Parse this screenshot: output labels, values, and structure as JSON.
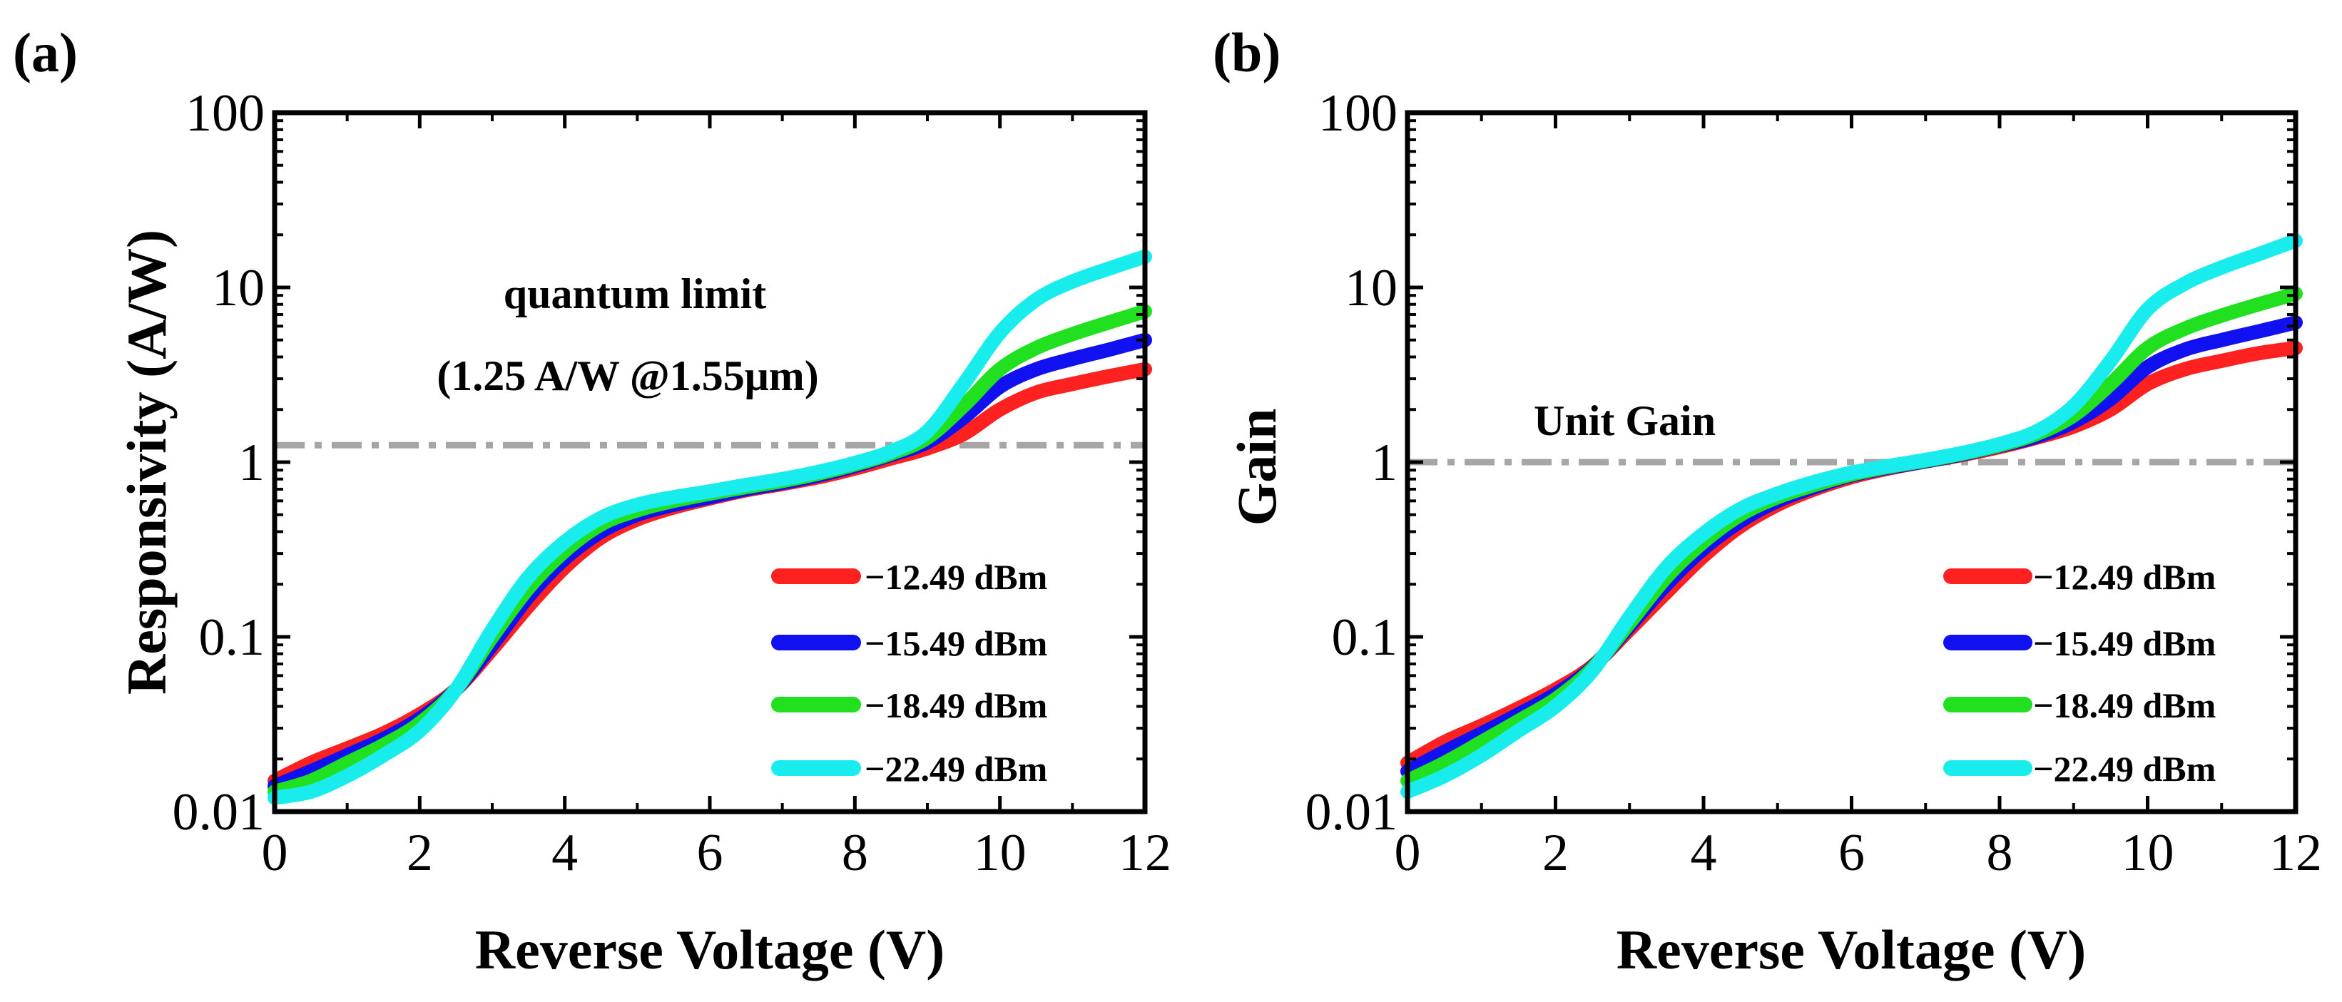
{
  "chart_data": [
    {
      "panel_label": "(a)",
      "type": "line",
      "xlabel": "Reverse Voltage (V)",
      "ylabel": "Responsivity (A/W)",
      "xlim": [
        0,
        12
      ],
      "ylim": [
        0.01,
        100
      ],
      "yscale": "log",
      "xticks": [
        "0",
        "2",
        "4",
        "6",
        "8",
        "10",
        "12"
      ],
      "yticks": [
        "0.01",
        "0.1",
        "1",
        "10",
        "100"
      ],
      "annotation_lines": [
        "quantum limit",
        "(1.25 A/W @1.55μm)"
      ],
      "reference_line": {
        "y": 1.25,
        "style": "dash-dot",
        "color": "#a6a6a6"
      },
      "legend_position": "bottom-right",
      "x": [
        0,
        0.5,
        1,
        1.5,
        2,
        2.5,
        3,
        3.5,
        4,
        4.5,
        5,
        5.5,
        6,
        6.5,
        7,
        7.5,
        8,
        8.5,
        9,
        9.5,
        10,
        10.5,
        11,
        11.5,
        12
      ],
      "series": [
        {
          "name": "−12.49 dBm",
          "color": "#ff2020",
          "values": [
            0.015,
            0.019,
            0.023,
            0.028,
            0.036,
            0.05,
            0.085,
            0.15,
            0.25,
            0.37,
            0.47,
            0.55,
            0.62,
            0.69,
            0.75,
            0.82,
            0.92,
            1.05,
            1.2,
            1.45,
            2.0,
            2.5,
            2.8,
            3.1,
            3.4
          ]
        },
        {
          "name": "−15.49 dBm",
          "color": "#1010f0",
          "values": [
            0.014,
            0.017,
            0.021,
            0.026,
            0.034,
            0.05,
            0.09,
            0.17,
            0.28,
            0.4,
            0.5,
            0.57,
            0.63,
            0.7,
            0.76,
            0.84,
            0.95,
            1.1,
            1.3,
            1.8,
            2.7,
            3.4,
            3.9,
            4.4,
            5.0
          ]
        },
        {
          "name": "−18.49 dBm",
          "color": "#20e020",
          "values": [
            0.013,
            0.015,
            0.019,
            0.024,
            0.032,
            0.05,
            0.1,
            0.19,
            0.31,
            0.44,
            0.53,
            0.6,
            0.66,
            0.72,
            0.78,
            0.86,
            0.97,
            1.12,
            1.38,
            2.1,
            3.4,
            4.5,
            5.4,
            6.3,
            7.3
          ]
        },
        {
          "name": "−22.49 dBm",
          "color": "#18ecec",
          "values": [
            0.012,
            0.013,
            0.016,
            0.021,
            0.029,
            0.05,
            0.11,
            0.22,
            0.35,
            0.48,
            0.57,
            0.63,
            0.68,
            0.74,
            0.8,
            0.88,
            0.99,
            1.15,
            1.5,
            2.8,
            5.5,
            8.5,
            10.8,
            12.8,
            15.0
          ]
        }
      ]
    },
    {
      "panel_label": "(b)",
      "type": "line",
      "xlabel": "Reverse Voltage (V)",
      "ylabel": "Gain",
      "xlim": [
        0,
        12
      ],
      "ylim": [
        0.01,
        100
      ],
      "yscale": "log",
      "xticks": [
        "0",
        "2",
        "4",
        "6",
        "8",
        "10",
        "12"
      ],
      "yticks": [
        "0.01",
        "0.1",
        "1",
        "10",
        "100"
      ],
      "annotation_lines": [
        "Unit Gain"
      ],
      "reference_line": {
        "y": 1.0,
        "style": "dash-dot",
        "color": "#a6a6a6"
      },
      "legend_position": "bottom-right",
      "x": [
        0,
        0.5,
        1,
        1.5,
        2,
        2.5,
        3,
        3.5,
        4,
        4.5,
        5,
        5.5,
        6,
        6.5,
        7,
        7.5,
        8,
        8.5,
        9,
        9.5,
        10,
        10.5,
        11,
        11.5,
        12
      ],
      "series": [
        {
          "name": "−12.49 dBm",
          "color": "#ff2020",
          "values": [
            0.019,
            0.025,
            0.031,
            0.039,
            0.05,
            0.068,
            0.11,
            0.18,
            0.29,
            0.43,
            0.57,
            0.7,
            0.82,
            0.92,
            1.01,
            1.1,
            1.22,
            1.38,
            1.6,
            2.0,
            2.8,
            3.4,
            3.8,
            4.2,
            4.5
          ]
        },
        {
          "name": "−15.49 dBm",
          "color": "#1010f0",
          "values": [
            0.017,
            0.022,
            0.028,
            0.036,
            0.047,
            0.067,
            0.115,
            0.2,
            0.32,
            0.46,
            0.6,
            0.72,
            0.84,
            0.93,
            1.01,
            1.11,
            1.24,
            1.4,
            1.7,
            2.3,
            3.5,
            4.4,
            5.0,
            5.6,
            6.3
          ]
        },
        {
          "name": "−18.49 dBm",
          "color": "#20e020",
          "values": [
            0.015,
            0.019,
            0.025,
            0.033,
            0.044,
            0.066,
            0.12,
            0.22,
            0.35,
            0.5,
            0.63,
            0.74,
            0.85,
            0.94,
            1.02,
            1.12,
            1.25,
            1.45,
            1.85,
            2.8,
            4.5,
            5.8,
            6.9,
            8.0,
            9.2
          ]
        },
        {
          "name": "−22.49 dBm",
          "color": "#18ecec",
          "values": [
            0.013,
            0.016,
            0.021,
            0.029,
            0.04,
            0.064,
            0.13,
            0.25,
            0.39,
            0.54,
            0.66,
            0.77,
            0.87,
            0.95,
            1.03,
            1.13,
            1.27,
            1.5,
            2.1,
            3.8,
            7.5,
            10.5,
            13.0,
            15.5,
            18.5
          ]
        }
      ]
    }
  ]
}
